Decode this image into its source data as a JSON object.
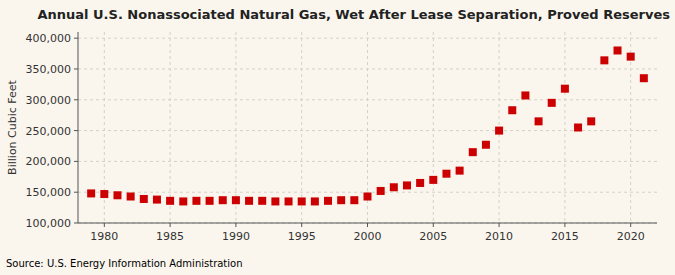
{
  "chart_data": {
    "type": "scatter",
    "title": "Annual U.S. Nonassociated Natural Gas, Wet After Lease Separation, Proved Reserves",
    "y_label": "Billion Cubic Feet",
    "annotation": "Source: U.S. Energy Information Administration",
    "x": [
      1979,
      1980,
      1981,
      1982,
      1983,
      1984,
      1985,
      1986,
      1987,
      1988,
      1989,
      1990,
      1991,
      1992,
      1993,
      1994,
      1995,
      1996,
      1997,
      1998,
      1999,
      2000,
      2001,
      2002,
      2003,
      2004,
      2005,
      2006,
      2007,
      2008,
      2009,
      2010,
      2011,
      2012,
      2013,
      2014,
      2015,
      2016,
      2017,
      2018,
      2019,
      2020,
      2021
    ],
    "values": [
      148000,
      147000,
      145000,
      143000,
      139000,
      138000,
      136000,
      135000,
      136000,
      136000,
      137000,
      137000,
      136000,
      136000,
      135000,
      135000,
      135000,
      135000,
      136000,
      137000,
      137000,
      143000,
      152000,
      158000,
      161000,
      165000,
      170000,
      180000,
      185000,
      215000,
      227000,
      250000,
      283000,
      307000,
      265000,
      295000,
      318000,
      255000,
      265000,
      364000,
      380000,
      370000,
      335000
    ],
    "color": "#cc0000",
    "marker": "square",
    "xlim": [
      1978,
      2022
    ],
    "ylim": [
      100000,
      410000
    ],
    "xticks": [
      1980,
      1985,
      1990,
      1995,
      2000,
      2005,
      2010,
      2015,
      2020
    ],
    "yticks": [
      {
        "value": 100000,
        "label": "100,000"
      },
      {
        "value": 150000,
        "label": "150,000"
      },
      {
        "value": 200000,
        "label": "200,000"
      },
      {
        "value": 250000,
        "label": "250,000"
      },
      {
        "value": 300000,
        "label": "300,000"
      },
      {
        "value": 350000,
        "label": "350,000"
      },
      {
        "value": 400000,
        "label": "400,000"
      }
    ],
    "grid": true
  }
}
